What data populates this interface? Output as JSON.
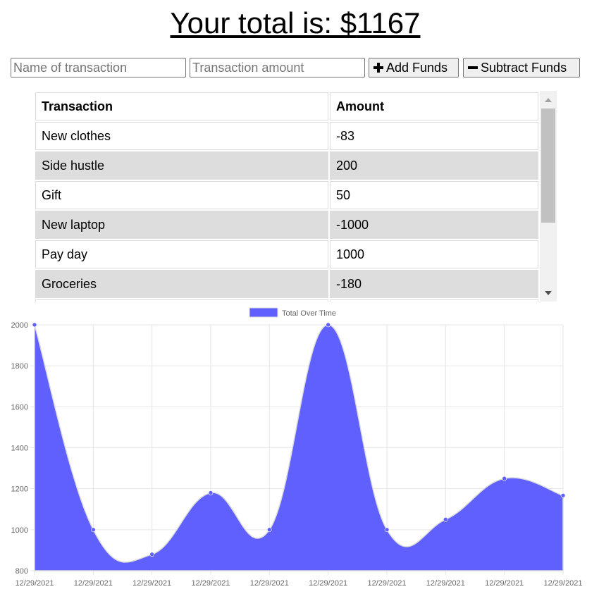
{
  "header": {
    "total_prefix": "Your total is: $",
    "total_value": "1167"
  },
  "form": {
    "name_placeholder": "Name of transaction",
    "amount_placeholder": "Transaction amount",
    "add_label": "Add Funds",
    "subtract_label": "Subtract Funds"
  },
  "table": {
    "headers": [
      "Transaction",
      "Amount"
    ],
    "rows": [
      {
        "name": "New clothes",
        "amount": "-83"
      },
      {
        "name": "Side hustle",
        "amount": "200"
      },
      {
        "name": "Gift",
        "amount": "50"
      },
      {
        "name": "New laptop",
        "amount": "-1000"
      },
      {
        "name": "Pay day",
        "amount": "1000"
      },
      {
        "name": "Groceries",
        "amount": "-180"
      },
      {
        "name": "",
        "amount": ""
      }
    ]
  },
  "colors": {
    "fill": "#6060ff",
    "point": "#6060ff",
    "grid": "#e6e6e6",
    "tick_text": "#666666"
  },
  "chart_data": {
    "type": "area",
    "legend": "Total Over Time",
    "legend_position": "top",
    "grid": true,
    "ylim": [
      800,
      2000
    ],
    "yticks": [
      800,
      1000,
      1200,
      1400,
      1600,
      1800,
      2000
    ],
    "categories": [
      "12/29/2021",
      "12/29/2021",
      "12/29/2021",
      "12/29/2021",
      "12/29/2021",
      "12/29/2021",
      "12/29/2021",
      "12/29/2021",
      "12/29/2021",
      "12/29/2021"
    ],
    "series": [
      {
        "name": "Total Over Time",
        "values": [
          2000,
          1000,
          880,
          1180,
          1000,
          2000,
          1000,
          1050,
          1250,
          1167
        ]
      }
    ]
  }
}
